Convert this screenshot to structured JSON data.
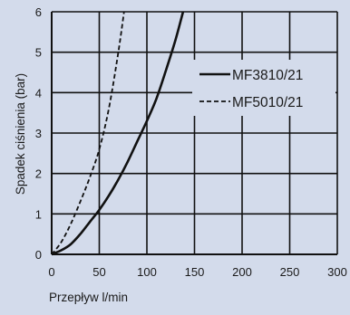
{
  "colors": {
    "background": "#d3dbeb",
    "grid": "#111111",
    "series": "#111111"
  },
  "chart_data": {
    "type": "line",
    "title": "",
    "xlabel": "Przepływ l/min",
    "ylabel": "Spadek ciśnienia (bar)",
    "xlim": [
      0,
      300
    ],
    "ylim": [
      0,
      6
    ],
    "xticks": [
      0,
      50,
      100,
      150,
      200,
      250,
      300
    ],
    "yticks": [
      0,
      1,
      2,
      3,
      4,
      5,
      6
    ],
    "grid": true,
    "legend_position": "right",
    "series": [
      {
        "name": "MF3810/21",
        "style": "solid",
        "x": [
          0,
          10,
          20,
          30,
          40,
          50,
          60,
          70,
          80,
          90,
          100,
          110,
          120,
          130,
          138
        ],
        "y": [
          0,
          0.1,
          0.25,
          0.5,
          0.8,
          1.1,
          1.45,
          1.85,
          2.3,
          2.8,
          3.3,
          3.85,
          4.55,
          5.3,
          6.0
        ]
      },
      {
        "name": "MF5010/21",
        "style": "dashed",
        "x": [
          0,
          10,
          20,
          30,
          40,
          50,
          60,
          70,
          76
        ],
        "y": [
          0,
          0.3,
          0.75,
          1.3,
          1.9,
          2.6,
          3.6,
          5.0,
          6.0
        ]
      }
    ]
  }
}
